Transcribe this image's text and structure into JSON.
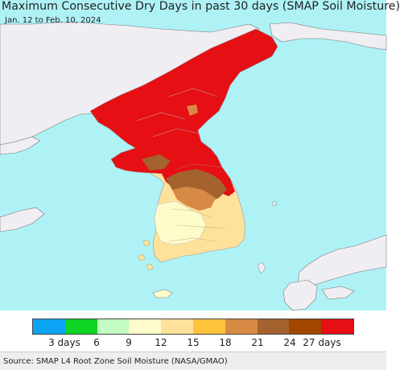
{
  "header": {
    "title": "Maximum Consecutive Dry Days in past 30 days (SMAP Soil Moisture)",
    "subtitle": "Jan. 12 to Feb. 10, 2024"
  },
  "map": {
    "sea_color": "#aef2f6",
    "land_outside_color": "#f0eef2",
    "regions": [
      "north-korea",
      "south-korea",
      "japan",
      "china-coast"
    ]
  },
  "legend": {
    "colors": [
      "#0aa4f2",
      "#0fd423",
      "#c2fcc3",
      "#fffccb",
      "#ffe29a",
      "#ffc23c",
      "#d78a44",
      "#a4622f",
      "#a34700",
      "#e50f14"
    ],
    "tick_labels": [
      "3 days",
      "6",
      "9",
      "12",
      "15",
      "18",
      "21",
      "24",
      "27 days"
    ]
  },
  "footer": {
    "source": "Source: SMAP L4 Root Zone Soil Moisture (NASA/GMAO)"
  }
}
